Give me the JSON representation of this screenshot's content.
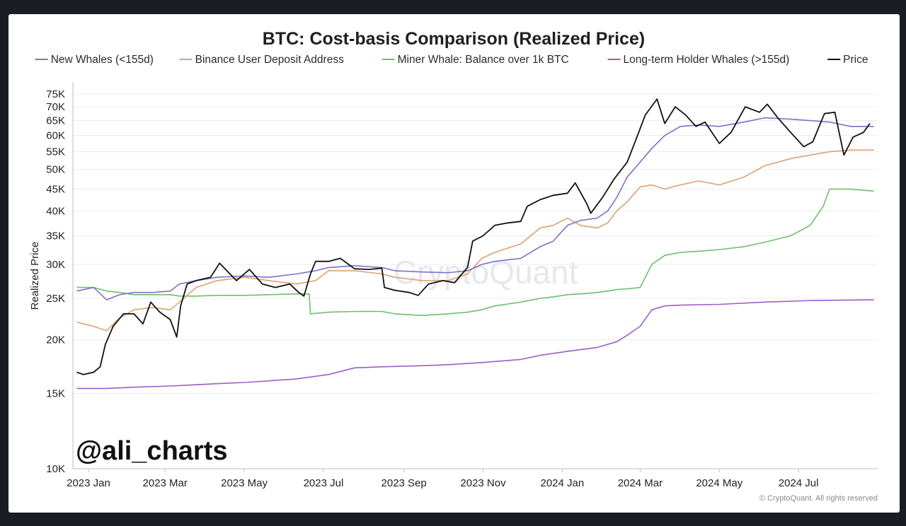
{
  "chart_data": {
    "type": "line",
    "title": "BTC: Cost-basis Comparison (Realized Price)",
    "ylabel": "Realized Price",
    "yscale": "log",
    "ylim": [
      10000,
      80000
    ],
    "xlim": [
      "2022-12-20",
      "2024-08-31"
    ],
    "grid": true,
    "legend_position": "top",
    "y_ticks": [
      {
        "value": 10000,
        "label": "10K"
      },
      {
        "value": 15000,
        "label": "15K"
      },
      {
        "value": 20000,
        "label": "20K"
      },
      {
        "value": 25000,
        "label": "25K"
      },
      {
        "value": 30000,
        "label": "30K"
      },
      {
        "value": 35000,
        "label": "35K"
      },
      {
        "value": 40000,
        "label": "40K"
      },
      {
        "value": 45000,
        "label": "45K"
      },
      {
        "value": 50000,
        "label": "50K"
      },
      {
        "value": 55000,
        "label": "55K"
      },
      {
        "value": 60000,
        "label": "60K"
      },
      {
        "value": 65000,
        "label": "65K"
      },
      {
        "value": 70000,
        "label": "70K"
      },
      {
        "value": 75000,
        "label": "75K"
      }
    ],
    "x_ticks": [
      {
        "value": "2023-01-01",
        "label": "2023 Jan"
      },
      {
        "value": "2023-03-01",
        "label": "2023 Mar"
      },
      {
        "value": "2023-05-01",
        "label": "2023 May"
      },
      {
        "value": "2023-07-01",
        "label": "2023 Jul"
      },
      {
        "value": "2023-09-01",
        "label": "2023 Sep"
      },
      {
        "value": "2023-11-01",
        "label": "2023 Nov"
      },
      {
        "value": "2024-01-01",
        "label": "2024 Jan"
      },
      {
        "value": "2024-03-01",
        "label": "2024 Mar"
      },
      {
        "value": "2024-05-01",
        "label": "2024 May"
      },
      {
        "value": "2024-07-01",
        "label": "2024 Jul"
      }
    ],
    "series": [
      {
        "name": "New Whales (<155d)",
        "color": "#7b72c8",
        "points": [
          [
            "2022-12-23",
            26000
          ],
          [
            "2023-01-05",
            26500
          ],
          [
            "2023-01-15",
            24800
          ],
          [
            "2023-01-25",
            25500
          ],
          [
            "2023-02-05",
            25800
          ],
          [
            "2023-02-20",
            25800
          ],
          [
            "2023-03-05",
            26000
          ],
          [
            "2023-03-12",
            27000
          ],
          [
            "2023-03-25",
            27500
          ],
          [
            "2023-04-10",
            28000
          ],
          [
            "2023-05-01",
            28200
          ],
          [
            "2023-05-20",
            28000
          ],
          [
            "2023-06-10",
            28500
          ],
          [
            "2023-06-25",
            29000
          ],
          [
            "2023-07-05",
            29500
          ],
          [
            "2023-07-25",
            29800
          ],
          [
            "2023-08-15",
            29500
          ],
          [
            "2023-08-25",
            29000
          ],
          [
            "2023-09-15",
            28800
          ],
          [
            "2023-10-05",
            28700
          ],
          [
            "2023-10-20",
            29000
          ],
          [
            "2023-10-31",
            30000
          ],
          [
            "2023-11-10",
            30500
          ],
          [
            "2023-11-30",
            31000
          ],
          [
            "2023-12-15",
            33000
          ],
          [
            "2023-12-25",
            34000
          ],
          [
            "2024-01-05",
            37000
          ],
          [
            "2024-01-15",
            38000
          ],
          [
            "2024-01-28",
            38500
          ],
          [
            "2024-02-05",
            40000
          ],
          [
            "2024-02-12",
            43000
          ],
          [
            "2024-02-20",
            48000
          ],
          [
            "2024-03-01",
            52000
          ],
          [
            "2024-03-10",
            56000
          ],
          [
            "2024-03-20",
            60000
          ],
          [
            "2024-04-01",
            63000
          ],
          [
            "2024-04-15",
            63500
          ],
          [
            "2024-05-01",
            63000
          ],
          [
            "2024-05-20",
            64500
          ],
          [
            "2024-06-05",
            66000
          ],
          [
            "2024-06-25",
            65500
          ],
          [
            "2024-07-10",
            65000
          ],
          [
            "2024-07-25",
            64500
          ],
          [
            "2024-08-10",
            63000
          ],
          [
            "2024-08-28",
            63000
          ]
        ]
      },
      {
        "name": "Binance User Deposit Address",
        "color": "#e0a070",
        "points": [
          [
            "2022-12-23",
            22000
          ],
          [
            "2023-01-05",
            21500
          ],
          [
            "2023-01-15",
            21000
          ],
          [
            "2023-01-25",
            22500
          ],
          [
            "2023-02-05",
            23500
          ],
          [
            "2023-02-20",
            23800
          ],
          [
            "2023-03-05",
            23500
          ],
          [
            "2023-03-12",
            24500
          ],
          [
            "2023-03-25",
            26500
          ],
          [
            "2023-04-10",
            27500
          ],
          [
            "2023-05-01",
            28000
          ],
          [
            "2023-05-20",
            27500
          ],
          [
            "2023-06-10",
            27000
          ],
          [
            "2023-06-25",
            27500
          ],
          [
            "2023-07-05",
            29000
          ],
          [
            "2023-07-25",
            29000
          ],
          [
            "2023-08-15",
            28500
          ],
          [
            "2023-08-25",
            28000
          ],
          [
            "2023-09-15",
            27500
          ],
          [
            "2023-10-05",
            27500
          ],
          [
            "2023-10-20",
            28500
          ],
          [
            "2023-10-31",
            31000
          ],
          [
            "2023-11-10",
            32000
          ],
          [
            "2023-11-30",
            33500
          ],
          [
            "2023-12-15",
            36500
          ],
          [
            "2023-12-25",
            37000
          ],
          [
            "2024-01-05",
            38500
          ],
          [
            "2024-01-15",
            37000
          ],
          [
            "2024-01-28",
            36500
          ],
          [
            "2024-02-05",
            37500
          ],
          [
            "2024-02-12",
            40000
          ],
          [
            "2024-02-20",
            42000
          ],
          [
            "2024-03-01",
            45500
          ],
          [
            "2024-03-10",
            46000
          ],
          [
            "2024-03-20",
            45000
          ],
          [
            "2024-04-01",
            46000
          ],
          [
            "2024-04-15",
            47000
          ],
          [
            "2024-05-01",
            46000
          ],
          [
            "2024-05-20",
            48000
          ],
          [
            "2024-06-05",
            51000
          ],
          [
            "2024-06-25",
            53000
          ],
          [
            "2024-07-10",
            54000
          ],
          [
            "2024-07-25",
            55000
          ],
          [
            "2024-08-10",
            55500
          ],
          [
            "2024-08-28",
            55500
          ]
        ]
      },
      {
        "name": "Miner Whale: Balance over 1k BTC",
        "color": "#6fbf6a",
        "points": [
          [
            "2022-12-23",
            26500
          ],
          [
            "2023-01-05",
            26500
          ],
          [
            "2023-01-15",
            26000
          ],
          [
            "2023-01-25",
            25800
          ],
          [
            "2023-02-05",
            25500
          ],
          [
            "2023-02-20",
            25500
          ],
          [
            "2023-03-05",
            25500
          ],
          [
            "2023-03-12",
            25300
          ],
          [
            "2023-03-25",
            25300
          ],
          [
            "2023-04-10",
            25400
          ],
          [
            "2023-05-01",
            25400
          ],
          [
            "2023-05-20",
            25500
          ],
          [
            "2023-06-10",
            25600
          ],
          [
            "2023-06-20",
            25600
          ],
          [
            "2023-06-21",
            23000
          ],
          [
            "2023-07-05",
            23200
          ],
          [
            "2023-07-25",
            23300
          ],
          [
            "2023-08-15",
            23300
          ],
          [
            "2023-08-25",
            23000
          ],
          [
            "2023-09-15",
            22800
          ],
          [
            "2023-10-05",
            23000
          ],
          [
            "2023-10-20",
            23200
          ],
          [
            "2023-10-31",
            23500
          ],
          [
            "2023-11-10",
            24000
          ],
          [
            "2023-11-30",
            24500
          ],
          [
            "2023-12-15",
            25000
          ],
          [
            "2023-12-25",
            25200
          ],
          [
            "2024-01-05",
            25500
          ],
          [
            "2024-01-15",
            25600
          ],
          [
            "2024-01-28",
            25800
          ],
          [
            "2024-02-05",
            26000
          ],
          [
            "2024-02-12",
            26200
          ],
          [
            "2024-02-20",
            26300
          ],
          [
            "2024-03-01",
            26500
          ],
          [
            "2024-03-10",
            30000
          ],
          [
            "2024-03-20",
            31500
          ],
          [
            "2024-04-01",
            32000
          ],
          [
            "2024-04-15",
            32200
          ],
          [
            "2024-05-01",
            32500
          ],
          [
            "2024-05-20",
            33000
          ],
          [
            "2024-06-05",
            33800
          ],
          [
            "2024-06-25",
            35000
          ],
          [
            "2024-07-10",
            37000
          ],
          [
            "2024-07-20",
            41000
          ],
          [
            "2024-07-25",
            45000
          ],
          [
            "2024-08-10",
            45000
          ],
          [
            "2024-08-28",
            44500
          ]
        ]
      },
      {
        "name": "Long-term Holder Whales (>155d)",
        "color": "#a05cc8",
        "points": [
          [
            "2022-12-23",
            15400
          ],
          [
            "2023-01-15",
            15400
          ],
          [
            "2023-02-05",
            15500
          ],
          [
            "2023-03-05",
            15600
          ],
          [
            "2023-04-10",
            15800
          ],
          [
            "2023-05-01",
            15900
          ],
          [
            "2023-06-10",
            16200
          ],
          [
            "2023-07-05",
            16600
          ],
          [
            "2023-07-25",
            17200
          ],
          [
            "2023-08-15",
            17300
          ],
          [
            "2023-09-15",
            17400
          ],
          [
            "2023-10-05",
            17500
          ],
          [
            "2023-10-31",
            17700
          ],
          [
            "2023-11-30",
            18000
          ],
          [
            "2023-12-15",
            18400
          ],
          [
            "2024-01-05",
            18800
          ],
          [
            "2024-01-28",
            19200
          ],
          [
            "2024-02-12",
            19800
          ],
          [
            "2024-02-20",
            20500
          ],
          [
            "2024-03-01",
            21500
          ],
          [
            "2024-03-10",
            23500
          ],
          [
            "2024-03-20",
            24000
          ],
          [
            "2024-04-01",
            24100
          ],
          [
            "2024-05-01",
            24200
          ],
          [
            "2024-06-05",
            24500
          ],
          [
            "2024-07-10",
            24700
          ],
          [
            "2024-08-28",
            24800
          ]
        ]
      },
      {
        "name": "Price",
        "color": "#111111",
        "points": [
          [
            "2022-12-23",
            16800
          ],
          [
            "2022-12-28",
            16600
          ],
          [
            "2023-01-05",
            16800
          ],
          [
            "2023-01-10",
            17300
          ],
          [
            "2023-01-14",
            19500
          ],
          [
            "2023-01-20",
            21500
          ],
          [
            "2023-01-28",
            23000
          ],
          [
            "2023-02-05",
            23000
          ],
          [
            "2023-02-12",
            21800
          ],
          [
            "2023-02-18",
            24500
          ],
          [
            "2023-02-25",
            23200
          ],
          [
            "2023-03-05",
            22300
          ],
          [
            "2023-03-10",
            20300
          ],
          [
            "2023-03-13",
            24000
          ],
          [
            "2023-03-18",
            27000
          ],
          [
            "2023-03-25",
            27500
          ],
          [
            "2023-04-05",
            28000
          ],
          [
            "2023-04-12",
            30200
          ],
          [
            "2023-04-20",
            28500
          ],
          [
            "2023-04-25",
            27500
          ],
          [
            "2023-05-05",
            29200
          ],
          [
            "2023-05-15",
            27000
          ],
          [
            "2023-05-25",
            26500
          ],
          [
            "2023-06-05",
            27000
          ],
          [
            "2023-06-12",
            25800
          ],
          [
            "2023-06-16",
            25300
          ],
          [
            "2023-06-21",
            28500
          ],
          [
            "2023-06-25",
            30500
          ],
          [
            "2023-07-05",
            30500
          ],
          [
            "2023-07-14",
            31000
          ],
          [
            "2023-07-25",
            29300
          ],
          [
            "2023-08-05",
            29200
          ],
          [
            "2023-08-15",
            29400
          ],
          [
            "2023-08-17",
            26500
          ],
          [
            "2023-08-25",
            26100
          ],
          [
            "2023-09-05",
            25800
          ],
          [
            "2023-09-12",
            25400
          ],
          [
            "2023-09-20",
            27000
          ],
          [
            "2023-10-01",
            27500
          ],
          [
            "2023-10-10",
            27200
          ],
          [
            "2023-10-20",
            29500
          ],
          [
            "2023-10-24",
            34000
          ],
          [
            "2023-11-01",
            35000
          ],
          [
            "2023-11-10",
            37000
          ],
          [
            "2023-11-20",
            37500
          ],
          [
            "2023-11-30",
            37800
          ],
          [
            "2023-12-05",
            41000
          ],
          [
            "2023-12-15",
            42500
          ],
          [
            "2023-12-25",
            43500
          ],
          [
            "2024-01-05",
            44000
          ],
          [
            "2024-01-11",
            46500
          ],
          [
            "2024-01-20",
            41500
          ],
          [
            "2024-01-23",
            39500
          ],
          [
            "2024-02-01",
            43000
          ],
          [
            "2024-02-10",
            47500
          ],
          [
            "2024-02-20",
            52000
          ],
          [
            "2024-02-28",
            60000
          ],
          [
            "2024-03-05",
            67000
          ],
          [
            "2024-03-14",
            73000
          ],
          [
            "2024-03-20",
            64000
          ],
          [
            "2024-03-28",
            70000
          ],
          [
            "2024-04-05",
            67000
          ],
          [
            "2024-04-13",
            63000
          ],
          [
            "2024-04-20",
            64500
          ],
          [
            "2024-05-01",
            57500
          ],
          [
            "2024-05-10",
            61000
          ],
          [
            "2024-05-21",
            70000
          ],
          [
            "2024-06-01",
            68000
          ],
          [
            "2024-06-07",
            71000
          ],
          [
            "2024-06-15",
            66000
          ],
          [
            "2024-06-25",
            61000
          ],
          [
            "2024-07-05",
            56500
          ],
          [
            "2024-07-12",
            58000
          ],
          [
            "2024-07-21",
            67500
          ],
          [
            "2024-07-29",
            68000
          ],
          [
            "2024-08-05",
            54000
          ],
          [
            "2024-08-12",
            59500
          ],
          [
            "2024-08-20",
            61000
          ],
          [
            "2024-08-25",
            64000
          ]
        ]
      }
    ]
  },
  "labels": {
    "watermark": "CryptoQuant",
    "handle": "@ali_charts",
    "credit": "© CryptoQuant. All rights reserved"
  }
}
